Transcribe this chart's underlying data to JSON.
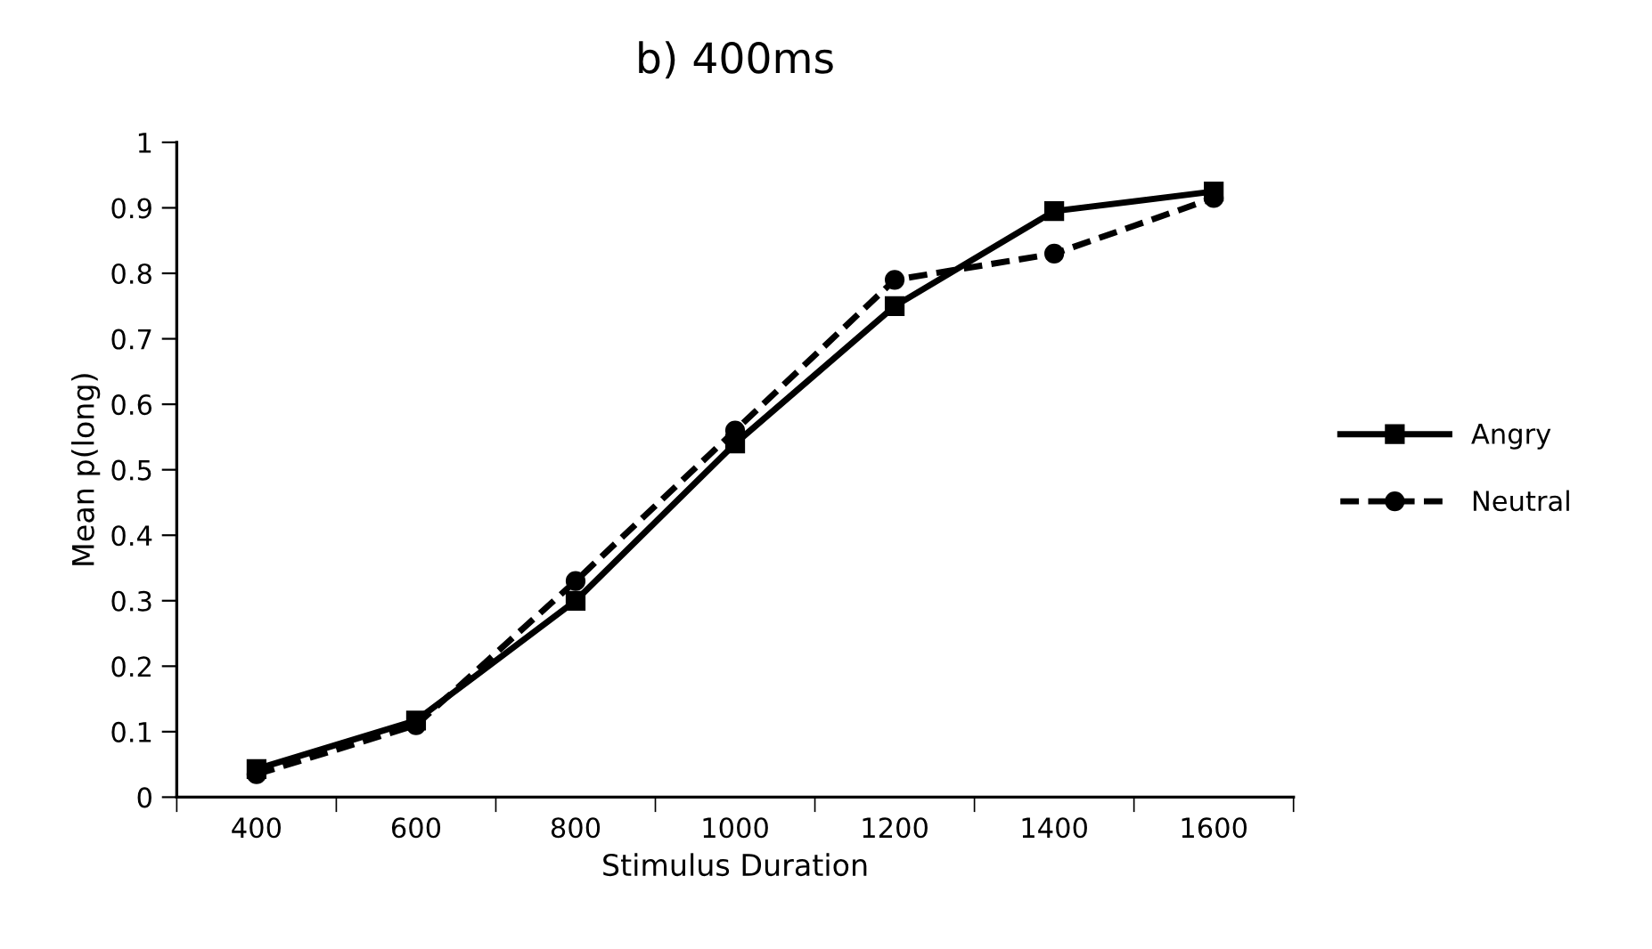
{
  "chart_data": {
    "type": "line",
    "title": "b) 400ms",
    "xlabel": "Stimulus Duration",
    "ylabel": "Mean p(long)",
    "categories": [
      "400",
      "600",
      "800",
      "1000",
      "1200",
      "1400",
      "1600"
    ],
    "series": [
      {
        "name": "Angry",
        "color": "#000000",
        "marker": "square",
        "line_style": "solid",
        "values": [
          0.043,
          0.117,
          0.3,
          0.54,
          0.75,
          0.895,
          0.925
        ]
      },
      {
        "name": "Neutral",
        "color": "#000000",
        "marker": "circle",
        "line_style": "dashed",
        "values": [
          0.035,
          0.11,
          0.33,
          0.56,
          0.79,
          0.83,
          0.915
        ]
      }
    ],
    "ylim": [
      0,
      1
    ],
    "yticks": [
      0,
      {
        "value": 0.1,
        "label": "0.1"
      },
      {
        "value": 0.2,
        "label": "0.2"
      },
      {
        "value": 0.3,
        "label": "0.3"
      },
      {
        "value": 0.4,
        "label": "0.4"
      },
      {
        "value": 0.5,
        "label": "0.5"
      },
      {
        "value": 0.6,
        "label": "0.6"
      },
      {
        "value": 0.7,
        "label": "0.7"
      },
      {
        "value": 0.8,
        "label": "0.8"
      },
      {
        "value": 0.9,
        "label": "0.9"
      },
      1
    ],
    "grid": false,
    "legend": "right"
  }
}
